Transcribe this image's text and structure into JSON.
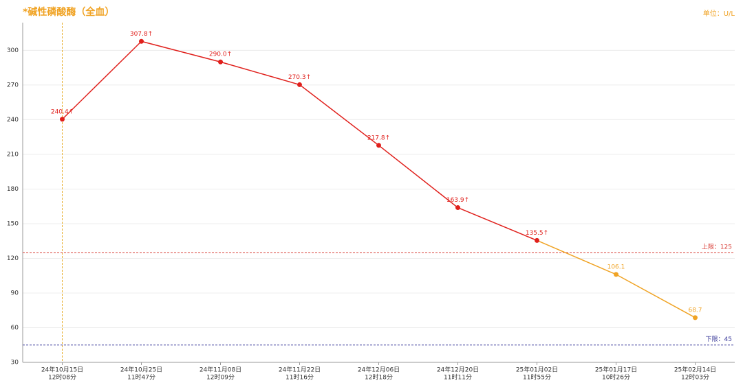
{
  "chart_data": {
    "type": "line",
    "title": "*碱性磷酸酶（全血）",
    "unit_label": "单位：U/L",
    "categories": [
      [
        "24年10月15日",
        "12时08分"
      ],
      [
        "24年10月25日",
        "11时47分"
      ],
      [
        "24年11月08日",
        "12时09分"
      ],
      [
        "24年11月22日",
        "11时16分"
      ],
      [
        "24年12月06日",
        "12时18分"
      ],
      [
        "24年12月20日",
        "11时11分"
      ],
      [
        "25年01月02日",
        "11时55分"
      ],
      [
        "25年01月17日",
        "10时26分"
      ],
      [
        "25年02月14日",
        "12时03分"
      ]
    ],
    "values": [
      240.4,
      307.8,
      290.0,
      270.3,
      217.8,
      163.9,
      135.5,
      106.1,
      68.7
    ],
    "value_labels": [
      "240.4↑",
      "307.8↑",
      "290.0↑",
      "270.3↑",
      "217.8↑",
      "163.9↑",
      "135.5↑",
      "106.1",
      "68.7"
    ],
    "colors": [
      "#e0201c",
      "#e0201c",
      "#e0201c",
      "#e0201c",
      "#e0201c",
      "#e0201c",
      "#e0201c",
      "#f0a324",
      "#f0a324"
    ],
    "ylim": [
      30,
      324
    ],
    "yticks": [
      30,
      60,
      90,
      120,
      150,
      180,
      210,
      240,
      270,
      300
    ],
    "grid": true,
    "reference_lines": [
      {
        "value": 125,
        "label": "上限：125",
        "color": "#d9403a"
      },
      {
        "value": 45,
        "label": "下限：45",
        "color": "#3a3a9a"
      }
    ],
    "highlight_category": 0,
    "highlight_color": "#e8b030"
  }
}
